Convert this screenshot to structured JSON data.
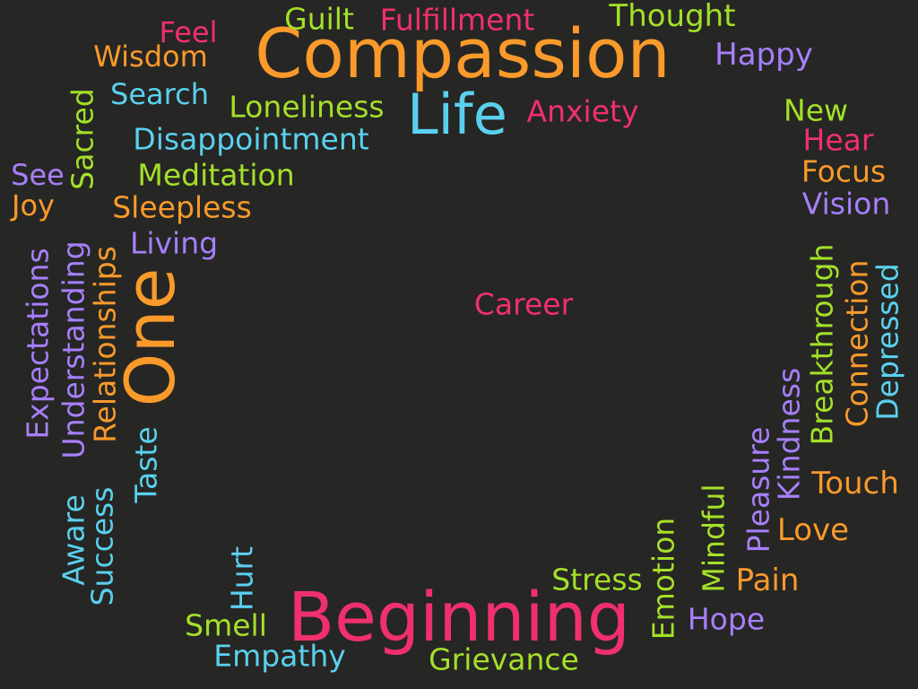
{
  "palette": {
    "background": "#262624",
    "pink": "#f0306e",
    "orange": "#f99a2b",
    "green": "#a4e029",
    "cyan": "#5ad0ee",
    "purple": "#a77ffc"
  },
  "words": {
    "compassion": "Compassion",
    "beginning": "Beginning",
    "life": "Life",
    "one": "One",
    "feel": "Feel",
    "guilt": "Guilt",
    "fulfillment": "Fulfillment",
    "thought": "Thought",
    "wisdom": "Wisdom",
    "happy": "Happy",
    "sacred": "Sacred",
    "search": "Search",
    "loneliness": "Loneliness",
    "anxiety": "Anxiety",
    "new": "New",
    "disappointment": "Disappointment",
    "hear": "Hear",
    "see": "See",
    "meditation": "Meditation",
    "focus": "Focus",
    "joy": "Joy",
    "sleepless": "Sleepless",
    "vision": "Vision",
    "living": "Living",
    "expectations": "Expectations",
    "understanding": "Understanding",
    "relationships": "Relationships",
    "career": "Career",
    "breakthrough": "Breakthrough",
    "connection": "Connection",
    "depressed": "Depressed",
    "kindness": "Kindness",
    "pleasure": "Pleasure",
    "aware": "Aware",
    "success": "Success",
    "taste": "Taste",
    "touch": "Touch",
    "mindful": "Mindful",
    "love": "Love",
    "emotion": "Emotion",
    "stress": "Stress",
    "pain": "Pain",
    "hurt": "Hurt",
    "hope": "Hope",
    "smell": "Smell",
    "empathy": "Empathy",
    "grievance": "Grievance"
  }
}
